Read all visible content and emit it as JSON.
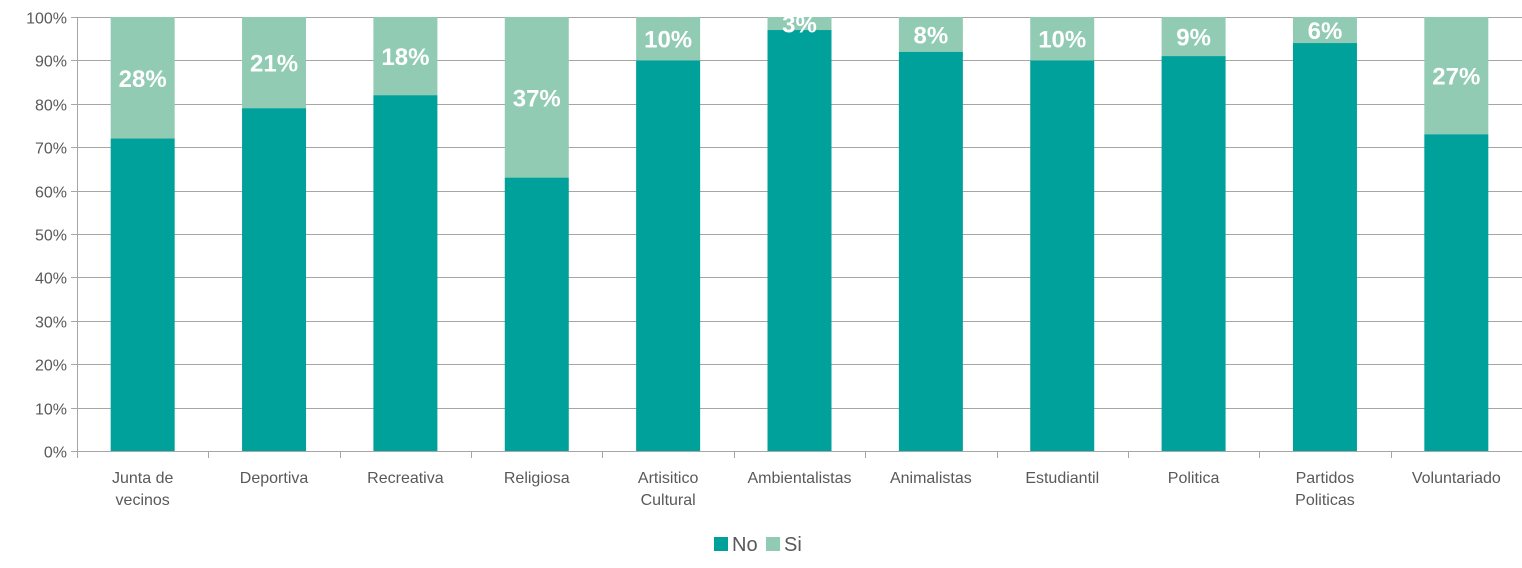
{
  "chart_data": {
    "type": "bar",
    "stacked": true,
    "percent_stacked": true,
    "categories": [
      [
        "Junta de",
        "vecinos"
      ],
      [
        "Deportiva"
      ],
      [
        "Recreativa"
      ],
      [
        "Religiosa"
      ],
      [
        "Artisitico",
        "Cultural"
      ],
      [
        "Ambientalistas"
      ],
      [
        "Animalistas"
      ],
      [
        "Estudiantil"
      ],
      [
        "Politica"
      ],
      [
        "Partidos",
        "Politicas"
      ],
      [
        "Voluntariado"
      ]
    ],
    "series": [
      {
        "name": "No",
        "color": "#00A19A",
        "values": [
          72,
          79,
          82,
          63,
          90,
          97,
          92,
          90,
          91,
          94,
          73
        ],
        "labels": [
          "",
          "",
          "",
          "",
          "",
          "",
          "",
          "",
          "",
          "",
          ""
        ]
      },
      {
        "name": "Si",
        "color": "#91CBB4",
        "values": [
          28,
          21,
          18,
          37,
          10,
          3,
          8,
          10,
          9,
          6,
          27
        ],
        "labels": [
          "28%",
          "21%",
          "18%",
          "37%",
          "10%",
          "3%",
          "8%",
          "10%",
          "9%",
          "6%",
          "27%"
        ]
      }
    ],
    "y_ticks": [
      "0%",
      "10%",
      "20%",
      "30%",
      "40%",
      "50%",
      "60%",
      "70%",
      "80%",
      "90%",
      "100%"
    ],
    "ylim": [
      0,
      100
    ],
    "grid": true,
    "legend_position": "bottom",
    "gridline_color": "#A6A6A6",
    "axis_color": "#A6A6A6"
  }
}
